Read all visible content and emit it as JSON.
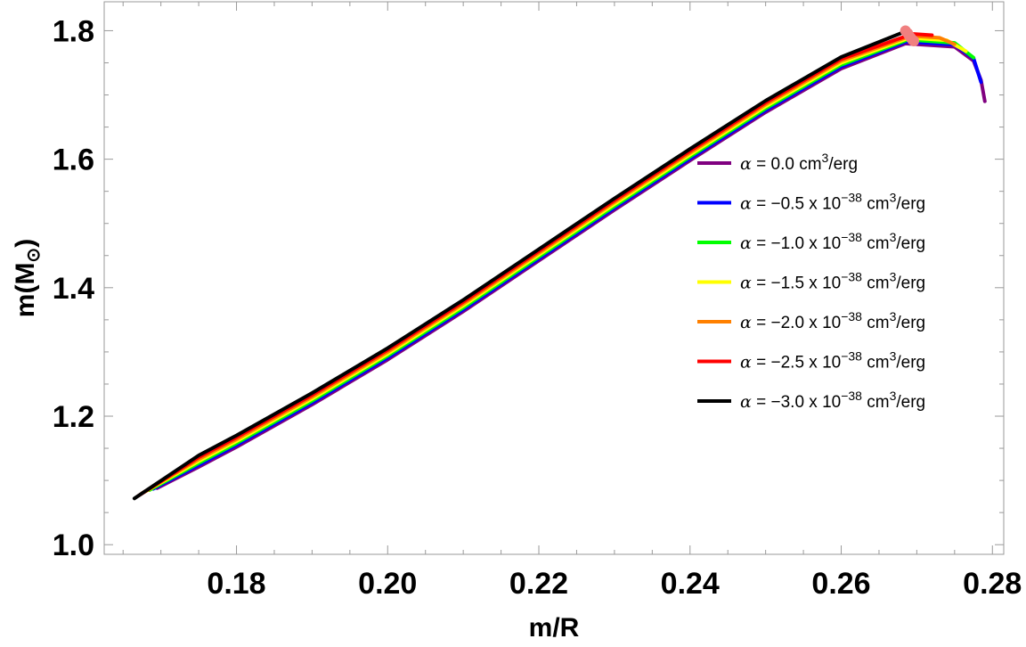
{
  "chart_data": {
    "type": "line",
    "title": "",
    "xlabel": "m/R",
    "ylabel_main": "m(M",
    "ylabel_symbol": "⊙",
    "ylabel_close": ")",
    "xlim": [
      0.1625,
      0.2815
    ],
    "ylim": [
      0.985,
      1.845
    ],
    "xticks": [
      0.18,
      0.2,
      0.22,
      0.24,
      0.26,
      0.28
    ],
    "xtick_labels": [
      "0.18",
      "0.20",
      "0.22",
      "0.24",
      "0.26",
      "0.28"
    ],
    "yticks": [
      1.0,
      1.2,
      1.4,
      1.6,
      1.8
    ],
    "ytick_labels": [
      "1.0",
      "1.2",
      "1.4",
      "1.6",
      "1.8"
    ],
    "grid": false,
    "legend_position": "right",
    "series": [
      {
        "name": "α = 0.0 cm3/erg",
        "alpha_text": "0.0",
        "exp": "",
        "color": "#800080",
        "x": [
          0.1695,
          0.175,
          0.18,
          0.19,
          0.2,
          0.21,
          0.22,
          0.23,
          0.24,
          0.25,
          0.26,
          0.2685,
          0.275,
          0.2775,
          0.2785,
          0.279
        ],
        "y": [
          1.088,
          1.121,
          1.152,
          1.218,
          1.288,
          1.363,
          1.442,
          1.521,
          1.598,
          1.673,
          1.741,
          1.78,
          1.775,
          1.753,
          1.723,
          1.69
        ]
      },
      {
        "name": "α = −0.5 x 10−38 cm3/erg",
        "alpha_text": "−0.5",
        "exp": "−38",
        "color": "#0000ff",
        "x": [
          0.169,
          0.175,
          0.18,
          0.19,
          0.2,
          0.21,
          0.22,
          0.23,
          0.24,
          0.25,
          0.26,
          0.2686,
          0.275,
          0.2775,
          0.2785
        ],
        "y": [
          1.087,
          1.124,
          1.155,
          1.221,
          1.291,
          1.366,
          1.445,
          1.524,
          1.601,
          1.676,
          1.744,
          1.783,
          1.778,
          1.757,
          1.72
        ]
      },
      {
        "name": "α = −1.0 x 10−38 cm3/erg",
        "alpha_text": "−1.0",
        "exp": "−38",
        "color": "#00ff00",
        "x": [
          0.1685,
          0.175,
          0.18,
          0.19,
          0.2,
          0.21,
          0.22,
          0.23,
          0.24,
          0.25,
          0.26,
          0.2688,
          0.275,
          0.2775
        ],
        "y": [
          1.085,
          1.127,
          1.158,
          1.224,
          1.294,
          1.369,
          1.448,
          1.527,
          1.604,
          1.679,
          1.747,
          1.786,
          1.781,
          1.758
        ]
      },
      {
        "name": "α = −1.5 x 10−38 cm3/erg",
        "alpha_text": "−1.5",
        "exp": "−38",
        "color": "#ffff00",
        "x": [
          0.168,
          0.175,
          0.18,
          0.19,
          0.2,
          0.21,
          0.22,
          0.23,
          0.24,
          0.25,
          0.26,
          0.269,
          0.274,
          0.2765
        ],
        "y": [
          1.083,
          1.13,
          1.161,
          1.227,
          1.297,
          1.372,
          1.451,
          1.53,
          1.607,
          1.682,
          1.75,
          1.789,
          1.785,
          1.768
        ]
      },
      {
        "name": "α = −2.0 x 10−38 cm3/erg",
        "alpha_text": "−2.0",
        "exp": "−38",
        "color": "#ff8000",
        "x": [
          0.1675,
          0.175,
          0.18,
          0.19,
          0.2,
          0.21,
          0.22,
          0.23,
          0.24,
          0.25,
          0.26,
          0.2692,
          0.273,
          0.275
        ],
        "y": [
          1.08,
          1.133,
          1.164,
          1.23,
          1.3,
          1.375,
          1.454,
          1.533,
          1.61,
          1.685,
          1.753,
          1.792,
          1.789,
          1.779
        ]
      },
      {
        "name": "α = −2.5 x 10−38 cm3/erg",
        "alpha_text": "−2.5",
        "exp": "−38",
        "color": "#ff0000",
        "x": [
          0.167,
          0.175,
          0.18,
          0.19,
          0.2,
          0.21,
          0.22,
          0.23,
          0.24,
          0.25,
          0.26,
          0.2694,
          0.272
        ],
        "y": [
          1.076,
          1.136,
          1.167,
          1.233,
          1.303,
          1.378,
          1.457,
          1.536,
          1.613,
          1.688,
          1.756,
          1.795,
          1.793
        ]
      },
      {
        "name": "α = −3.0 x 10−38 cm3/erg",
        "alpha_text": "−3.0",
        "exp": "−38",
        "color": "#000000",
        "x": [
          0.1665,
          0.175,
          0.18,
          0.19,
          0.2,
          0.21,
          0.22,
          0.23,
          0.24,
          0.25,
          0.26,
          0.2685
        ],
        "y": [
          1.072,
          1.139,
          1.17,
          1.236,
          1.306,
          1.381,
          1.46,
          1.539,
          1.616,
          1.691,
          1.759,
          1.799
        ]
      }
    ],
    "markers": {
      "color": "#f08080",
      "points": [
        [
          0.2685,
          1.8
        ],
        [
          0.2688,
          1.796
        ],
        [
          0.269,
          1.792
        ],
        [
          0.2692,
          1.789
        ],
        [
          0.2694,
          1.786
        ],
        [
          0.2696,
          1.784
        ]
      ]
    }
  },
  "legend_common": {
    "alpha_symbol": "α",
    "equals": " = ",
    "times_ten": " x 10",
    "unit_cm": " cm",
    "unit_exp": "3",
    "unit_tail": "/erg"
  }
}
